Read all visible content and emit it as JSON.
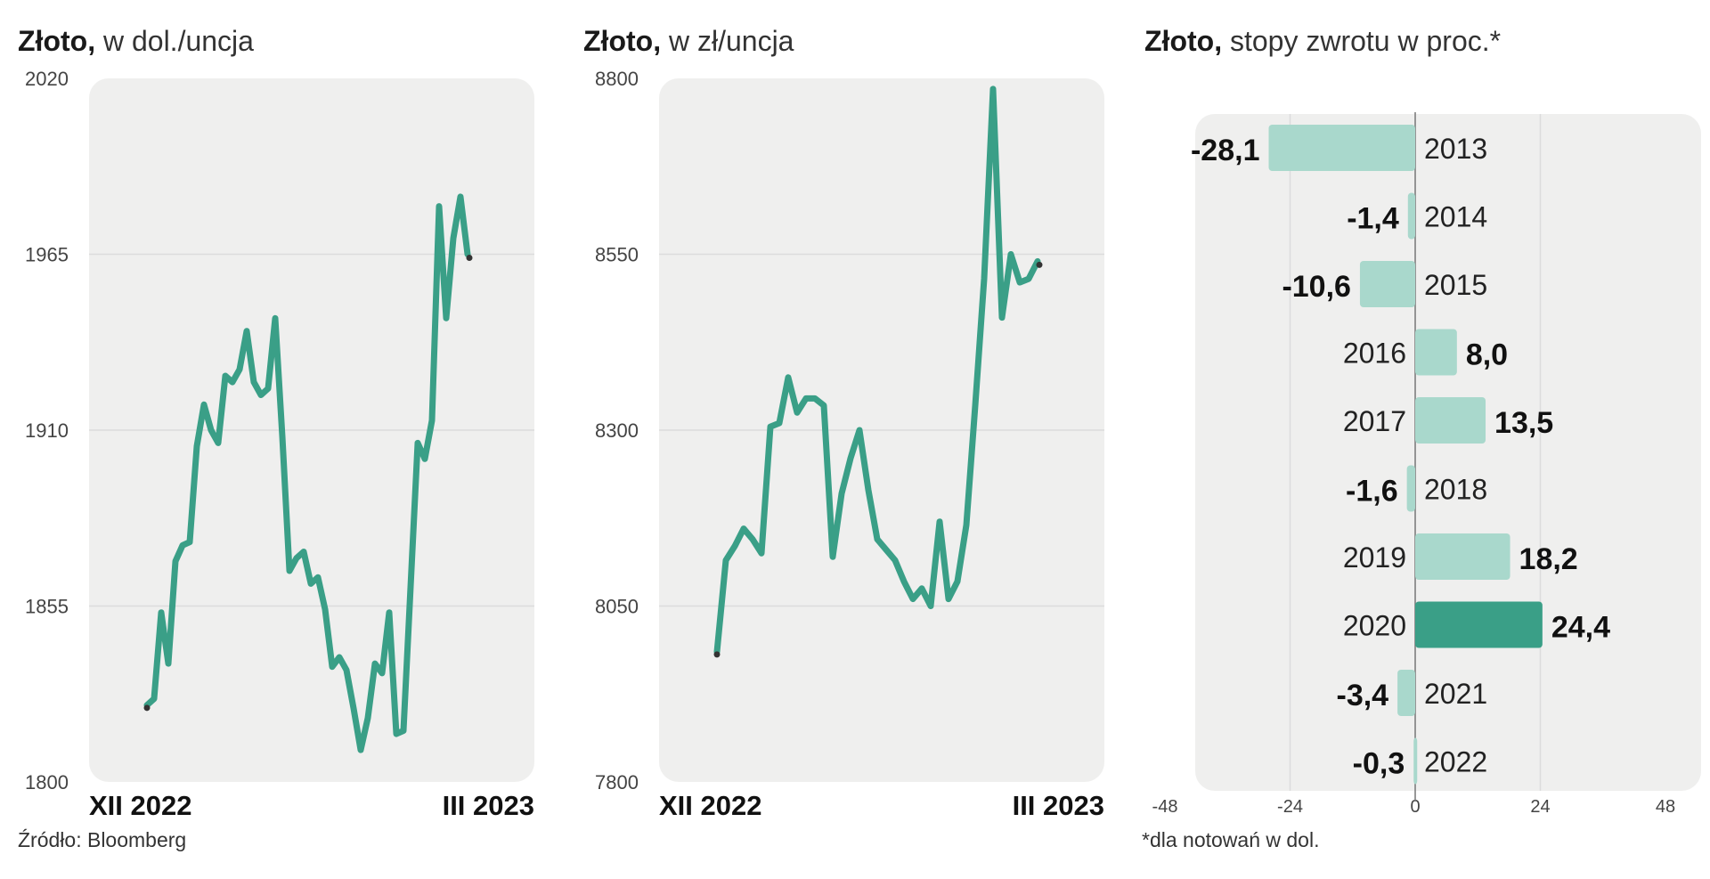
{
  "colors": {
    "line": "#3a9f87",
    "bar": "#a9d8cc",
    "bar_highlight": "#3a9f87",
    "panel_bg": "#efefee",
    "grid": "#dcdcdc"
  },
  "footer": {
    "source": "Źródło: Bloomberg",
    "note": "*dla notowań w dol."
  },
  "chart_data": [
    {
      "type": "line",
      "title": "Złoto,",
      "subtitle": "w dol./uncja",
      "ylim": [
        1800,
        2020
      ],
      "yticks": [
        2020,
        1965,
        1910,
        1855,
        1800
      ],
      "x_start_label": "XII 2022",
      "x_end_label": "III 2023",
      "grid": true,
      "series": [
        {
          "values": [
            1824,
            1826,
            1853,
            1837,
            1869,
            1874,
            1875,
            1905,
            1918,
            1910,
            1906,
            1927,
            1925,
            1929,
            1941,
            1925,
            1921,
            1923,
            1945,
            1908,
            1866,
            1870,
            1872,
            1862,
            1864,
            1854,
            1836,
            1839,
            1835,
            1823,
            1810,
            1820,
            1837,
            1834,
            1853,
            1815,
            1816,
            1861,
            1906,
            1901,
            1913,
            1980,
            1945,
            1970,
            1983,
            1965
          ]
        }
      ]
    },
    {
      "type": "line",
      "title": "Złoto,",
      "subtitle": "w zł/uncja",
      "ylim": [
        7800,
        8800
      ],
      "yticks": [
        8800,
        8550,
        8300,
        8050,
        7800
      ],
      "x_start_label": "XII 2022",
      "x_end_label": "III 2023",
      "grid": true,
      "series": [
        {
          "values": [
            7985,
            8115,
            8135,
            8160,
            8145,
            8125,
            8305,
            8310,
            8375,
            8325,
            8345,
            8345,
            8335,
            8120,
            8210,
            8260,
            8300,
            8215,
            8145,
            8130,
            8115,
            8085,
            8060,
            8075,
            8050,
            8170,
            8060,
            8085,
            8165,
            8335,
            8515,
            8785,
            8460,
            8550,
            8510,
            8515,
            8540
          ]
        }
      ]
    },
    {
      "type": "bar",
      "title": "Złoto,",
      "subtitle": "stopy zwrotu w proc.*",
      "orientation": "horizontal",
      "categories": [
        "2013",
        "2014",
        "2015",
        "2016",
        "2017",
        "2018",
        "2019",
        "2020",
        "2021",
        "2022"
      ],
      "values": [
        -28.1,
        -1.4,
        -10.6,
        8.0,
        13.5,
        -1.6,
        18.2,
        24.4,
        -3.4,
        -0.3
      ],
      "value_labels": [
        "-28,1",
        "-1,4",
        "-10,6",
        "8,0",
        "13,5",
        "-1,6",
        "18,2",
        "24,4",
        "-3,4",
        "-0,3"
      ],
      "xlim": [
        -48,
        48
      ],
      "xticks": [
        -48,
        -24,
        0,
        24,
        48
      ],
      "highlight": "2020",
      "grid": true
    }
  ]
}
